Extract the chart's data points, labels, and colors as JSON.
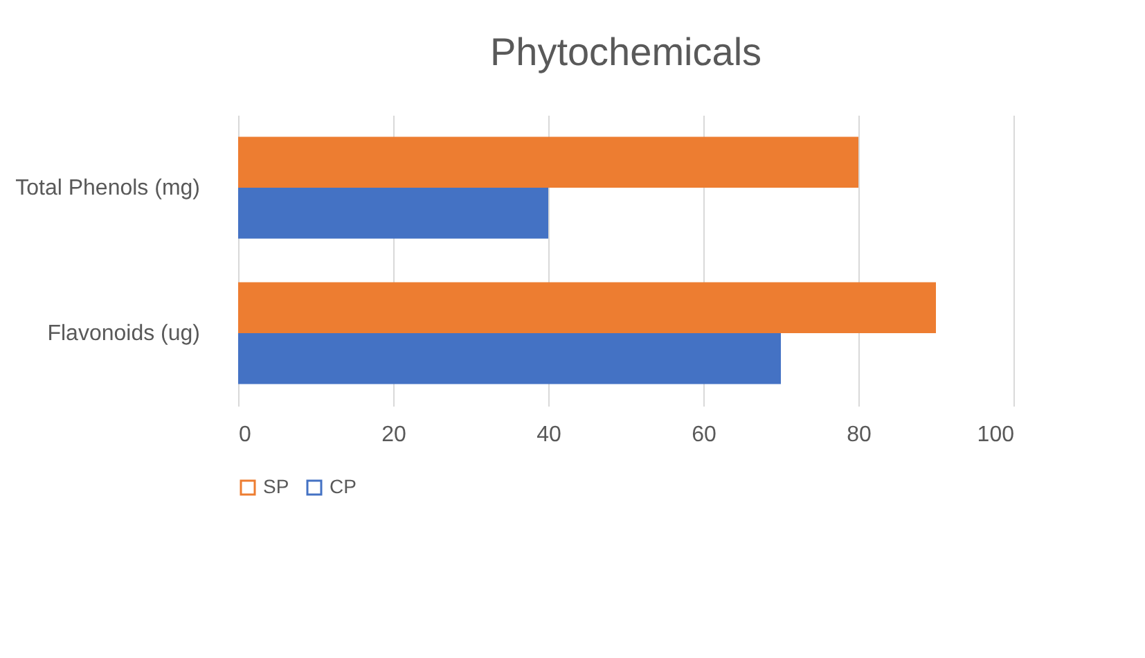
{
  "chart_data": {
    "type": "bar",
    "orientation": "horizontal",
    "title": "Phytochemicals",
    "categories": [
      "Total Phenols (mg)",
      "Flavonoids (ug)"
    ],
    "series": [
      {
        "name": "SP",
        "color": "#ed7d31",
        "values": [
          80,
          90
        ]
      },
      {
        "name": "CP",
        "color": "#4472c4",
        "values": [
          40,
          70
        ]
      }
    ],
    "xlim": [
      0,
      100
    ],
    "xticks": [
      0,
      20,
      40,
      60,
      80,
      100
    ],
    "grid": "x",
    "legend": "bottom"
  }
}
